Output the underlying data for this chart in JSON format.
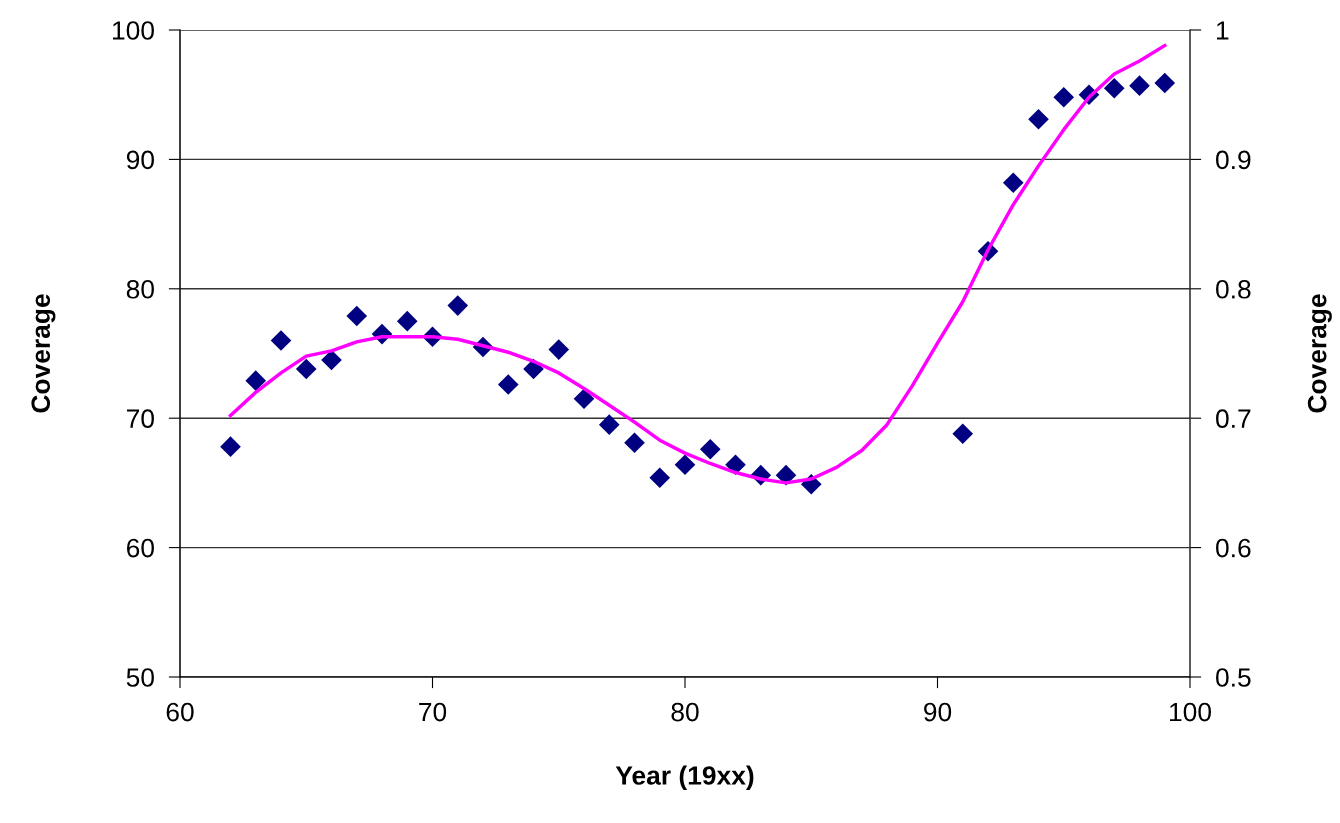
{
  "chart_data": {
    "type": "scatter",
    "xlabel": "Year (19xx)",
    "ylabel": "Coverage",
    "y2label": "Coverage",
    "xlim": [
      60,
      100
    ],
    "xticks": [
      60,
      70,
      80,
      90,
      100
    ],
    "ylim": [
      50,
      100
    ],
    "yticks": [
      50,
      60,
      70,
      80,
      90,
      100
    ],
    "y2lim": [
      0.5,
      1
    ],
    "y2ticks": [
      0.5,
      0.6,
      0.7,
      0.8,
      0.9,
      1
    ],
    "grid": "y",
    "legend": false,
    "series": [
      {
        "color": "#000080",
        "marker": "diamond",
        "x": [
          62,
          63,
          64,
          65,
          66,
          67,
          68,
          69,
          70,
          71,
          72,
          73,
          74,
          75,
          76,
          77,
          78,
          79,
          80,
          81,
          82,
          83,
          84,
          85,
          91,
          92,
          93,
          94,
          95,
          96,
          97,
          98,
          99
        ],
        "values": [
          67.8,
          72.9,
          76.0,
          73.8,
          74.5,
          77.9,
          76.5,
          77.5,
          76.3,
          78.7,
          75.5,
          72.6,
          73.8,
          75.3,
          71.5,
          69.5,
          68.1,
          65.4,
          66.4,
          67.6,
          66.4,
          65.6,
          65.6,
          64.9,
          68.8,
          82.9,
          88.2,
          93.1,
          94.8,
          95.0,
          95.5,
          95.7,
          95.9
        ]
      },
      {
        "type": "line",
        "color": "#ff00ff",
        "marker": "none",
        "line_style": "solid",
        "x": [
          62,
          63,
          64,
          65,
          66,
          67,
          68,
          69,
          70,
          71,
          72,
          73,
          74,
          75,
          76,
          77,
          78,
          79,
          80,
          81,
          82,
          83,
          84,
          85,
          86,
          87,
          88,
          89,
          90,
          91,
          92,
          93,
          94,
          95,
          96,
          97,
          98,
          99
        ],
        "values": [
          70.2,
          72.0,
          73.5,
          74.8,
          75.2,
          75.9,
          76.3,
          76.3,
          76.3,
          76.1,
          75.6,
          75.1,
          74.4,
          73.5,
          72.3,
          71.0,
          69.7,
          68.3,
          67.3,
          66.5,
          65.8,
          65.3,
          65.0,
          65.3,
          66.2,
          67.5,
          69.5,
          72.5,
          75.8,
          79.0,
          83.0,
          86.5,
          89.5,
          92.3,
          94.8,
          96.6,
          97.6,
          98.8
        ]
      }
    ]
  }
}
